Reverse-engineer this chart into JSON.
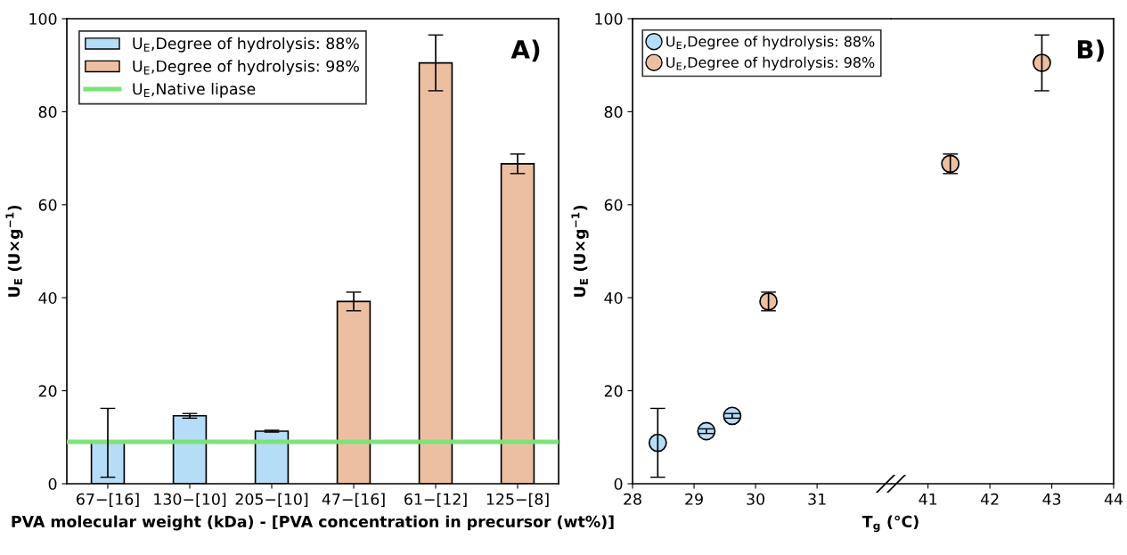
{
  "chart_data": [
    {
      "type": "bar",
      "categories": [
        "67−[16]",
        "130−[10]",
        "205−[10]",
        "47−[16]",
        "61−[12]",
        "125−[8]"
      ],
      "series": [
        {
          "name": "U$_{E}$,Degree of hydrolysis: 88%",
          "color": "#b5ddf7",
          "values": [
            8.8,
            14.6,
            11.3,
            null,
            null,
            null
          ],
          "errors": [
            7.4,
            0.5,
            0.2,
            null,
            null,
            null
          ]
        },
        {
          "name": "U$_{E}$,Degree of hydrolysis: 98%",
          "color": "#edbfa1",
          "values": [
            null,
            null,
            null,
            39.2,
            90.5,
            68.8
          ],
          "errors": [
            null,
            null,
            null,
            2.0,
            6.0,
            2.1
          ]
        }
      ],
      "stacked": true,
      "ref_lines": [
        {
          "axis": "y",
          "value": 9.0,
          "label": "U$_{E}$,Native lipase",
          "color": "#7ee27a"
        }
      ],
      "ylim": [
        0,
        100
      ],
      "yticks": [
        0,
        20,
        40,
        60,
        80,
        100
      ],
      "xlabel": "PVA molecular weight (kDa) - [PVA concentration in precursor (wt%)]",
      "ylabel": "U$_{E}$ (U×g$^{−1}$)",
      "annotations": [
        "A)"
      ],
      "legend": "top left",
      "grid": false
    },
    {
      "type": "scatter",
      "marker": "circle",
      "series": [
        {
          "name": "U$_{E}$,Degree of hydrolysis: 88%",
          "color": "#b5ddf7",
          "x": [
            28.41,
            29.2,
            29.62
          ],
          "values": [
            8.8,
            11.3,
            14.6
          ],
          "errors": [
            7.4,
            0.5,
            0.5
          ]
        },
        {
          "name": "U$_{E}$,Degree of hydrolysis: 98%",
          "color": "#edbfa1",
          "x": [
            30.21
          ],
          "values": [
            39.2
          ],
          "errors": [
            2.0
          ]
        }
      ],
      "xlim": [
        28,
        32.2
      ],
      "xticks": [
        28,
        29,
        30,
        31
      ],
      "ylim": [
        0,
        100
      ],
      "yticks": [
        0,
        20,
        40,
        60,
        80,
        100
      ],
      "ylabel": "U$_{E}$ (U×g$^{−1}$)",
      "legend": "top",
      "grid": false
    },
    {
      "type": "scatter",
      "marker": "circle",
      "series": [
        {
          "color": "#edbfa1",
          "x": [
            41.36,
            42.84
          ],
          "values": [
            68.8,
            90.5
          ],
          "errors": [
            2.1,
            6.0
          ]
        }
      ],
      "xlim": [
        40.4,
        44
      ],
      "xticks": [
        41,
        42,
        43,
        44
      ],
      "ylim": [
        0,
        100
      ],
      "tick_labels": "x",
      "xlabel": "T$_{g}$ (°C)",
      "annotations": [
        "B)"
      ],
      "grid": false
    }
  ]
}
